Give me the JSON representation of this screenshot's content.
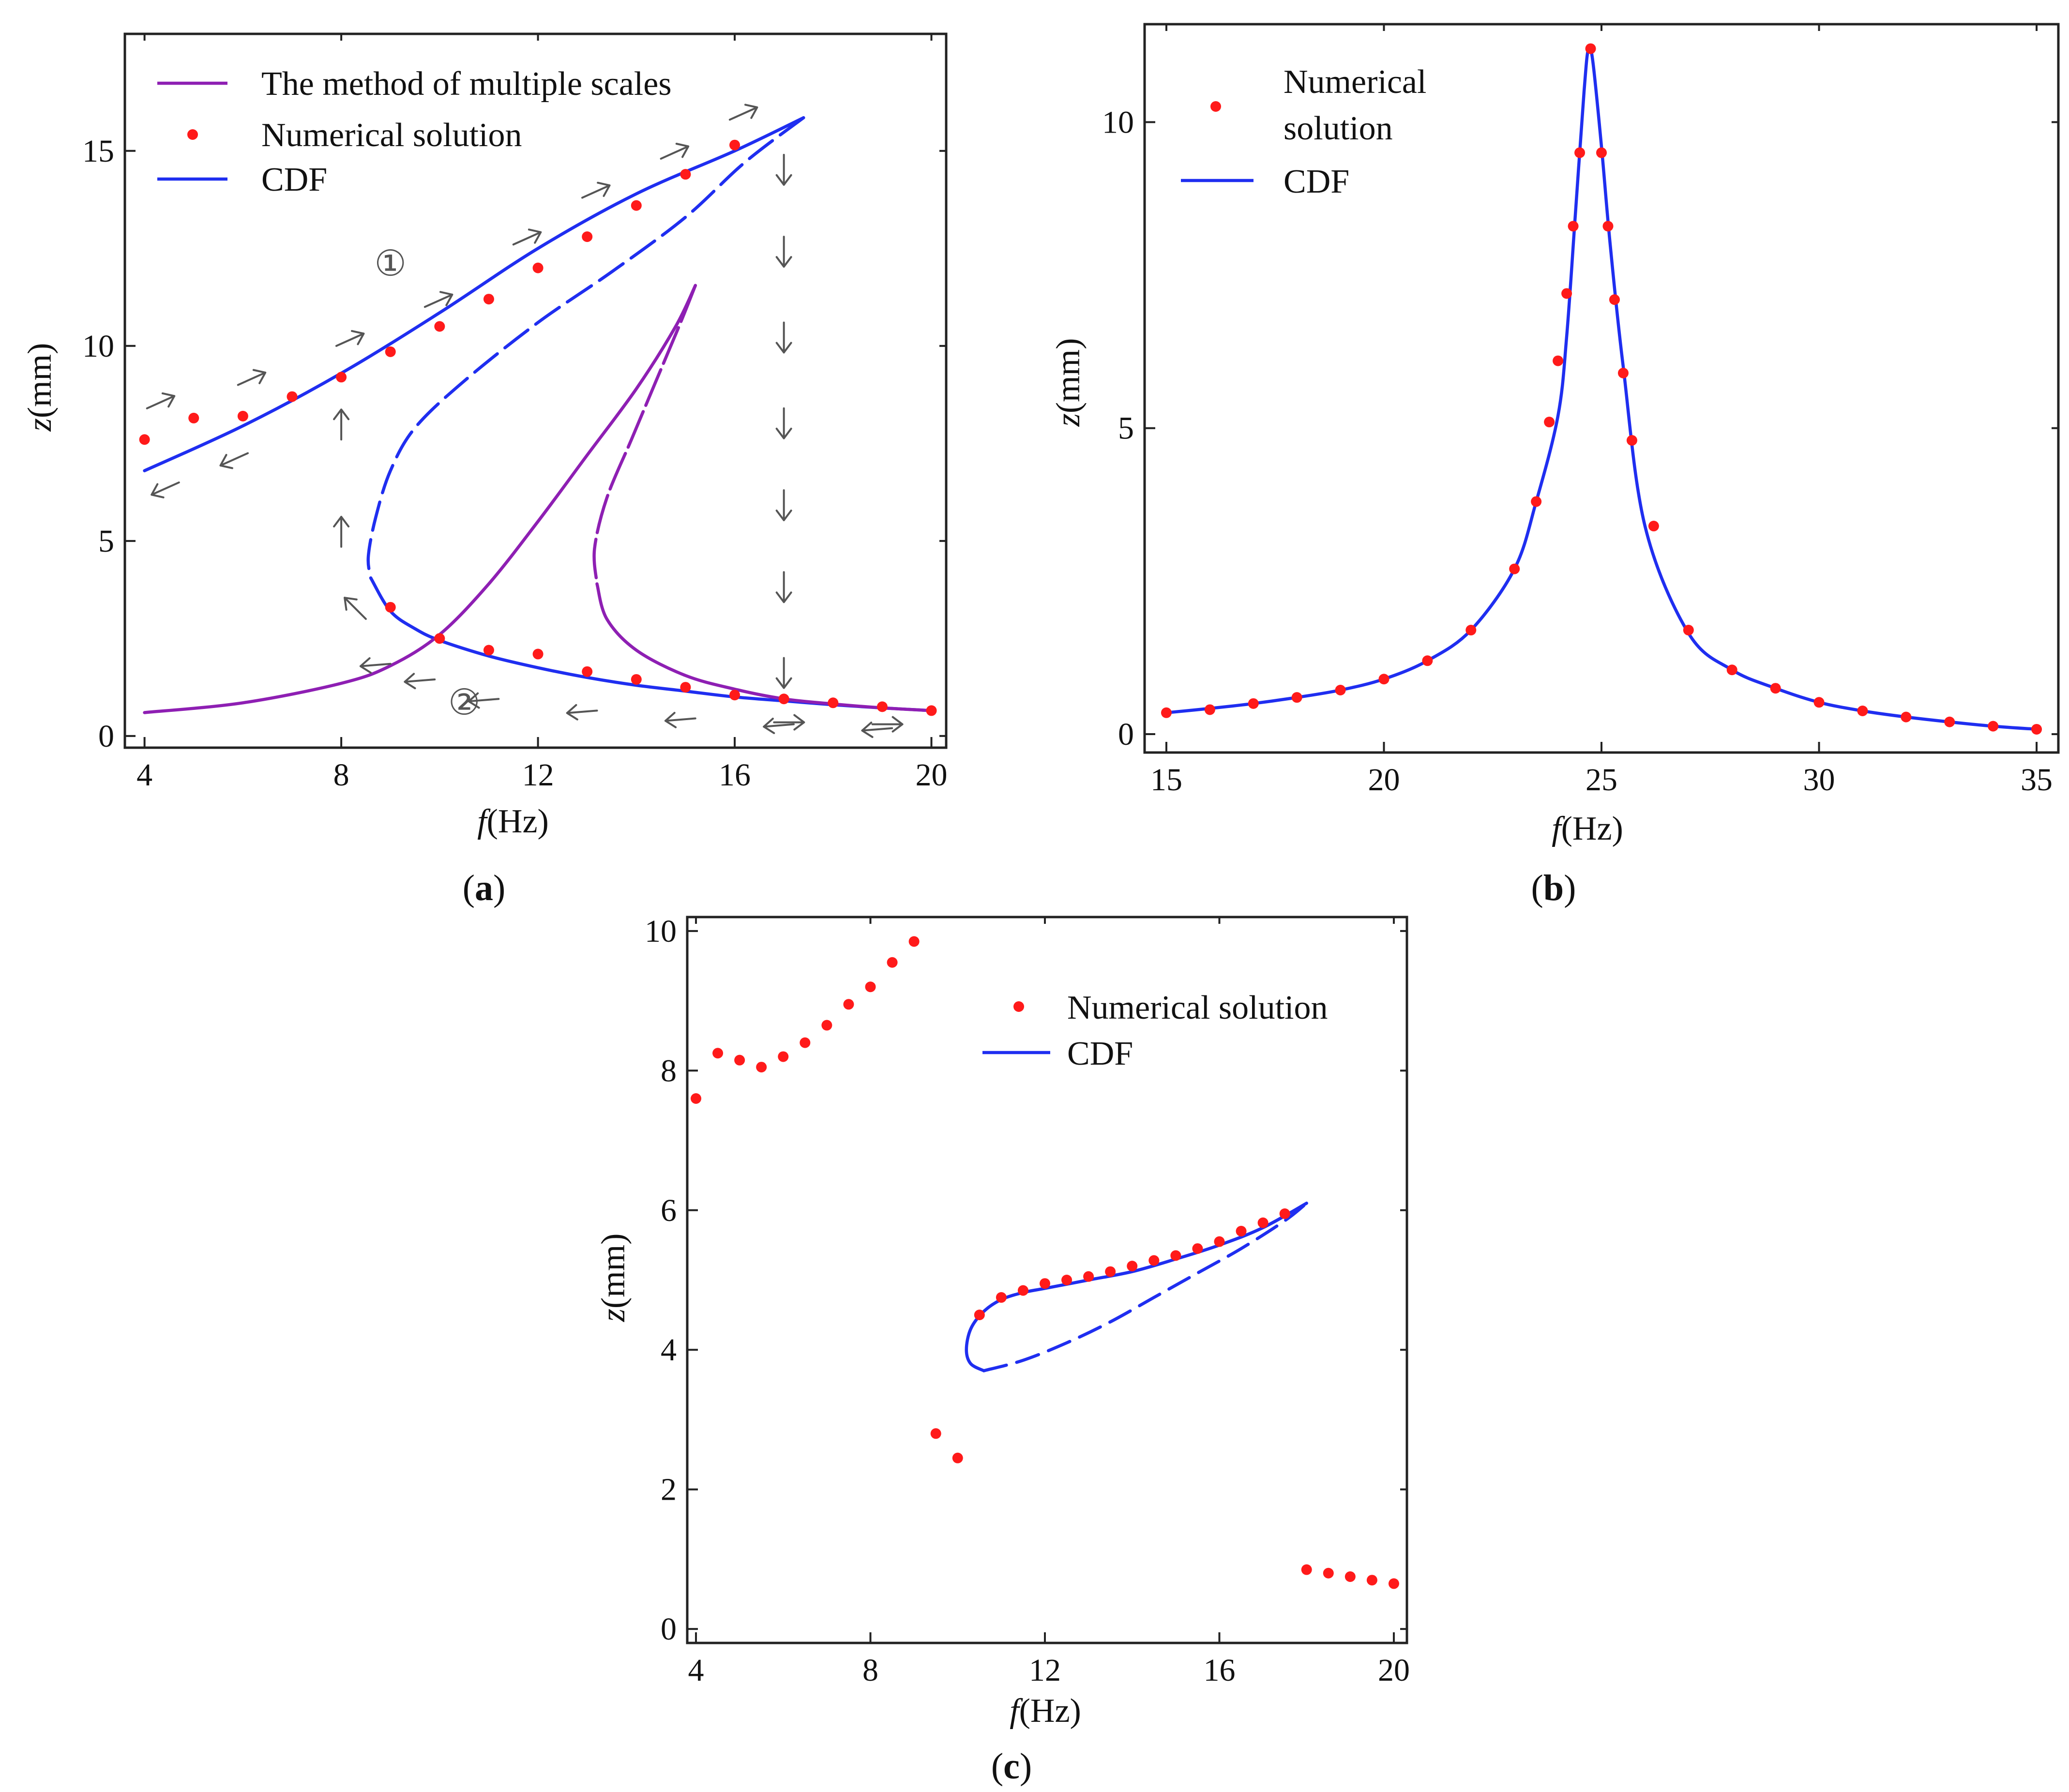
{
  "colors": {
    "cdf": "#1f2ef0",
    "mms": "#8e1fb3",
    "numerical": "#ff1a1a",
    "arrow": "#555555"
  },
  "chart_data": [
    {
      "id": "a",
      "type": "line",
      "caption_letter": "a",
      "xlabel_italic": "f",
      "xlabel_rest": "(Hz)",
      "ylabel_italic": "z",
      "ylabel_rest": "(mm)",
      "xlim": [
        3.6,
        20.3
      ],
      "ylim": [
        -0.3,
        18.0
      ],
      "xticks": [
        4,
        8,
        12,
        16,
        20
      ],
      "yticks": [
        0,
        5,
        10,
        15
      ],
      "legend": [
        "The method of multiple scales",
        "Numerical solution",
        "CDF"
      ],
      "annotations": [
        "①",
        "②"
      ],
      "series": [
        {
          "name": "CDF (stable upper)",
          "style": "solid",
          "color_key": "cdf",
          "x": [
            4,
            6,
            8,
            10,
            12,
            14,
            16,
            17.4
          ],
          "y": [
            6.8,
            7.95,
            9.3,
            10.85,
            12.5,
            13.9,
            15.0,
            15.85
          ]
        },
        {
          "name": "CDF (unstable)",
          "style": "dashed",
          "color_key": "cdf",
          "x": [
            17.4,
            16.2,
            15.0,
            13.5,
            12.0,
            10.5,
            9.5,
            9.0,
            8.7,
            8.55,
            8.6
          ],
          "y": [
            15.85,
            14.7,
            13.3,
            11.9,
            10.6,
            9.1,
            7.9,
            6.8,
            5.6,
            4.6,
            4.05
          ]
        },
        {
          "name": "CDF (stable lower)",
          "style": "solid",
          "color_key": "cdf",
          "x": [
            8.6,
            9.0,
            9.5,
            10.0,
            11,
            12,
            13,
            14,
            15,
            16,
            17,
            18,
            19,
            20
          ],
          "y": [
            4.05,
            3.2,
            2.75,
            2.45,
            2.05,
            1.75,
            1.5,
            1.3,
            1.15,
            1.0,
            0.9,
            0.8,
            0.72,
            0.65
          ]
        },
        {
          "name": "MMS (stable lower)",
          "style": "solid",
          "color_key": "mms",
          "x": [
            4,
            6,
            8,
            9,
            10,
            11,
            12,
            13,
            14,
            14.8,
            15.2
          ],
          "y": [
            0.6,
            0.85,
            1.35,
            1.8,
            2.6,
            3.9,
            5.5,
            7.2,
            8.9,
            10.5,
            11.55
          ]
        },
        {
          "name": "MMS (unstable)",
          "style": "dashed",
          "color_key": "mms",
          "x": [
            15.2,
            14.9,
            14.4,
            13.9,
            13.4,
            13.15,
            13.2
          ],
          "y": [
            11.55,
            10.6,
            9.1,
            7.6,
            6.1,
            4.8,
            3.9
          ]
        },
        {
          "name": "MMS (stable upper)",
          "style": "solid",
          "color_key": "mms",
          "x": [
            13.2,
            13.4,
            14,
            15,
            16,
            17,
            18,
            19,
            20
          ],
          "y": [
            3.9,
            3.0,
            2.2,
            1.55,
            1.2,
            0.95,
            0.82,
            0.72,
            0.65
          ]
        },
        {
          "name": "Numerical solution",
          "style": "markers",
          "color_key": "numerical",
          "x": [
            4,
            5,
            6,
            7,
            8,
            9,
            10,
            11,
            12,
            13,
            14,
            15,
            16,
            9,
            10,
            11,
            12,
            13,
            14,
            15,
            16,
            17,
            18,
            19,
            20
          ],
          "y": [
            7.6,
            8.15,
            8.2,
            8.7,
            9.2,
            9.85,
            10.5,
            11.2,
            12.0,
            12.8,
            13.6,
            14.4,
            15.15,
            3.3,
            2.5,
            2.2,
            2.1,
            1.65,
            1.45,
            1.25,
            1.05,
            0.95,
            0.85,
            0.75,
            0.65
          ]
        }
      ],
      "flow_arrows": {
        "up_sweep": [
          [
            4.05,
            8.4
          ],
          [
            5.9,
            9.0
          ],
          [
            7.9,
            10.0
          ],
          [
            9.7,
            11.0
          ],
          [
            11.5,
            12.6
          ],
          [
            12.9,
            13.8
          ],
          [
            14.5,
            14.8
          ],
          [
            15.9,
            15.8
          ]
        ],
        "up_sweep_right": [
          [
            16.8,
            0.35
          ],
          [
            18.8,
            0.3
          ]
        ],
        "down_sweep_lower": [
          [
            19.2,
            0.2
          ],
          [
            17.2,
            0.3
          ],
          [
            15.2,
            0.45
          ],
          [
            13.2,
            0.65
          ],
          [
            11.2,
            0.95
          ],
          [
            9.9,
            1.45
          ],
          [
            9.0,
            1.85
          ]
        ],
        "down_sweep_upper": [
          [
            6.1,
            7.25
          ],
          [
            4.7,
            6.5
          ]
        ],
        "diagonal_up_left": [
          [
            8.5,
            3.0
          ]
        ],
        "vertical_up": [
          [
            8.0,
            4.85
          ],
          [
            8.0,
            7.6
          ]
        ],
        "vertical_down": [
          [
            17.0,
            14.9
          ],
          [
            17.0,
            12.8
          ],
          [
            17.0,
            10.6
          ],
          [
            17.0,
            8.4
          ],
          [
            17.0,
            6.3
          ],
          [
            17.0,
            4.2
          ],
          [
            17.0,
            2.0
          ]
        ],
        "circle_1_at": [
          9.0,
          11.8
        ],
        "circle_2_at": [
          10.5,
          0.55
        ]
      }
    },
    {
      "id": "b",
      "type": "line",
      "caption_letter": "b",
      "xlabel_italic": "f",
      "xlabel_rest": "(Hz)",
      "ylabel_italic": "z",
      "ylabel_rest": "(mm)",
      "xlim": [
        14.5,
        35.5
      ],
      "ylim": [
        -0.3,
        11.6
      ],
      "xticks": [
        15,
        20,
        25,
        30,
        35
      ],
      "yticks": [
        0,
        5,
        10
      ],
      "legend": [
        "Numerical",
        "solution",
        "CDF"
      ],
      "series": [
        {
          "name": "CDF",
          "style": "solid",
          "color_key": "cdf",
          "x": [
            15,
            16,
            17,
            18,
            19,
            20,
            21,
            22,
            23,
            23.5,
            24,
            24.2,
            24.4,
            24.6,
            24.7,
            24.8,
            25.0,
            25.2,
            25.5,
            26,
            27,
            28,
            29,
            30,
            31,
            32,
            33,
            34,
            35
          ],
          "y": [
            0.35,
            0.42,
            0.5,
            0.6,
            0.72,
            0.9,
            1.2,
            1.7,
            2.7,
            3.8,
            5.2,
            6.5,
            8.5,
            10.5,
            11.2,
            11.0,
            9.6,
            8.0,
            6.0,
            3.4,
            1.65,
            1.05,
            0.75,
            0.52,
            0.38,
            0.28,
            0.2,
            0.13,
            0.08
          ]
        },
        {
          "name": "Numerical solution",
          "style": "markers",
          "color_key": "numerical",
          "x": [
            15,
            16,
            17,
            18,
            19,
            20,
            21,
            22,
            23,
            23.5,
            23.8,
            24.0,
            24.2,
            24.35,
            24.5,
            24.75,
            25.0,
            25.15,
            25.3,
            25.5,
            25.7,
            26.2,
            27,
            28,
            29,
            30,
            31,
            32,
            33,
            34,
            35
          ],
          "y": [
            0.35,
            0.4,
            0.5,
            0.6,
            0.72,
            0.9,
            1.2,
            1.7,
            2.7,
            3.8,
            5.1,
            6.1,
            7.2,
            8.3,
            9.5,
            11.2,
            9.5,
            8.3,
            7.1,
            5.9,
            4.8,
            3.4,
            1.7,
            1.05,
            0.75,
            0.52,
            0.38,
            0.28,
            0.2,
            0.13,
            0.08
          ]
        }
      ]
    },
    {
      "id": "c",
      "type": "line",
      "caption_letter": "c",
      "xlabel_italic": "f",
      "xlabel_rest": "(Hz)",
      "ylabel_italic": "z",
      "ylabel_rest": "(mm)",
      "xlim": [
        3.8,
        20.3
      ],
      "ylim": [
        -0.2,
        10.2
      ],
      "xticks": [
        4,
        8,
        12,
        16,
        20
      ],
      "yticks": [
        0,
        2,
        4,
        6,
        8,
        10
      ],
      "legend": [
        "Numerical solution",
        "CDF"
      ],
      "series": [
        {
          "name": "CDF (upper branch)",
          "style": "solid",
          "color_key": "cdf",
          "x": [
            18.0,
            17.0,
            16.0,
            15.0,
            14.0,
            13.0,
            12.0,
            11.5,
            11.0,
            10.6,
            10.3,
            10.2,
            10.3,
            10.6
          ],
          "y": [
            6.1,
            5.75,
            5.5,
            5.3,
            5.12,
            5.0,
            4.88,
            4.82,
            4.72,
            4.55,
            4.3,
            4.0,
            3.8,
            3.7
          ]
        },
        {
          "name": "CDF (lower branch)",
          "style": "dashed",
          "color_key": "cdf",
          "x": [
            10.6,
            11.5,
            12.5,
            13.5,
            14.5,
            15.5,
            16.5,
            17.5,
            18.0
          ],
          "y": [
            3.7,
            3.85,
            4.1,
            4.4,
            4.75,
            5.1,
            5.45,
            5.85,
            6.1
          ]
        },
        {
          "name": "Numerical solution",
          "style": "markers",
          "color_key": "numerical",
          "x": [
            4.0,
            4.5,
            5.0,
            5.5,
            6.0,
            6.5,
            7.0,
            7.5,
            8.0,
            8.5,
            9.0,
            9.5,
            10.0,
            10.5,
            11.0,
            11.5,
            12.0,
            12.5,
            13.0,
            13.5,
            14.0,
            14.5,
            15.0,
            15.5,
            16.0,
            16.5,
            17.0,
            17.5,
            18.0,
            18.5,
            19.0,
            19.5,
            20.0
          ],
          "y": [
            7.6,
            8.25,
            8.15,
            8.05,
            8.2,
            8.4,
            8.65,
            8.95,
            9.2,
            9.55,
            9.85,
            2.8,
            2.45,
            4.5,
            4.75,
            4.85,
            4.95,
            5.0,
            5.05,
            5.12,
            5.2,
            5.28,
            5.35,
            5.45,
            5.55,
            5.7,
            5.82,
            5.95,
            0.85,
            0.8,
            0.75,
            0.7,
            0.65
          ]
        }
      ]
    }
  ]
}
